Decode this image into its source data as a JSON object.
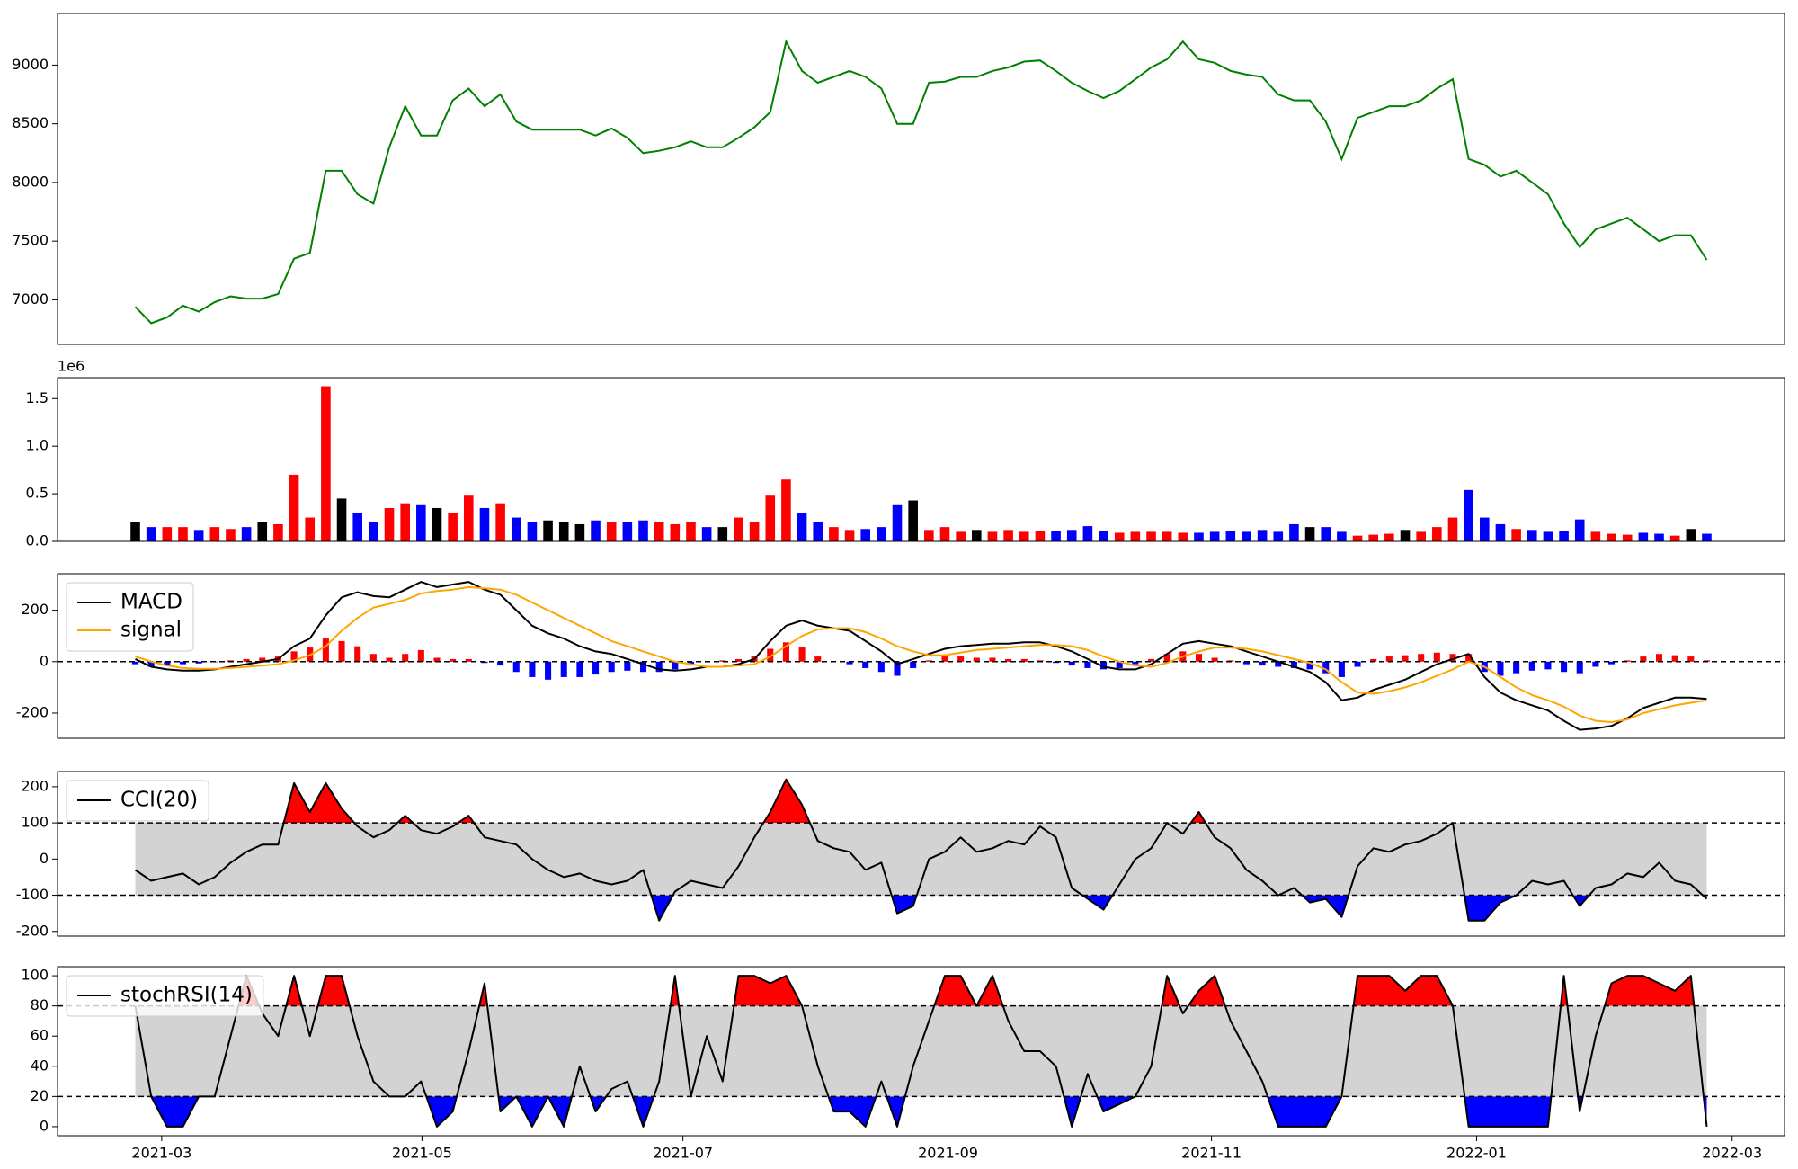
{
  "chart_data": [
    {
      "type": "line",
      "color": "#008000",
      "values": [
        6940,
        6800,
        6850,
        6950,
        6900,
        6980,
        7030,
        7010,
        7010,
        7050,
        7350,
        7400,
        8100,
        8100,
        7900,
        7820,
        8300,
        8650,
        8400,
        8400,
        8700,
        8800,
        8650,
        8750,
        8520,
        8450,
        8450,
        8450,
        8450,
        8400,
        8460,
        8380,
        8250,
        8270,
        8300,
        8350,
        8300,
        8300,
        8380,
        8470,
        8600,
        9200,
        8950,
        8850,
        8900,
        8950,
        8900,
        8800,
        8500,
        8500,
        8850,
        8860,
        8900,
        8900,
        8950,
        8980,
        9030,
        9040,
        8950,
        8850,
        8780,
        8720,
        8780,
        8880,
        8980,
        9050,
        9200,
        9050,
        9020,
        8950,
        8920,
        8900,
        8750,
        8700,
        8700,
        8520,
        8200,
        8550,
        8600,
        8650,
        8650,
        8700,
        8800,
        8880,
        8200,
        8150,
        8050,
        8100,
        8000,
        7900,
        7650,
        7450,
        7600,
        7650,
        7700,
        7600,
        7500,
        7550,
        7550,
        7340
      ],
      "xlim": [
        -4.9,
        103.9
      ],
      "ylim": [
        6620,
        9440
      ],
      "yticks": [
        7000,
        7500,
        8000,
        8500,
        9000
      ]
    },
    {
      "type": "bar",
      "up_color": "red",
      "down_color": "blue",
      "flat_color": "black",
      "offset_label": "1e6",
      "values": [
        200000,
        150000,
        150000,
        150000,
        120000,
        150000,
        130000,
        150000,
        200000,
        180000,
        700000,
        250000,
        1630000,
        450000,
        300000,
        200000,
        350000,
        400000,
        380000,
        350000,
        300000,
        480000,
        350000,
        400000,
        250000,
        200000,
        220000,
        200000,
        180000,
        220000,
        200000,
        200000,
        220000,
        200000,
        180000,
        200000,
        150000,
        150000,
        250000,
        200000,
        480000,
        650000,
        300000,
        200000,
        150000,
        120000,
        130000,
        150000,
        380000,
        430000,
        120000,
        150000,
        100000,
        120000,
        100000,
        120000,
        100000,
        110000,
        110000,
        120000,
        160000,
        110000,
        90000,
        100000,
        100000,
        100000,
        90000,
        90000,
        100000,
        110000,
        100000,
        120000,
        100000,
        180000,
        150000,
        150000,
        100000,
        60000,
        70000,
        80000,
        120000,
        100000,
        150000,
        250000,
        540000,
        250000,
        180000,
        130000,
        120000,
        100000,
        110000,
        230000,
        100000,
        80000,
        70000,
        90000,
        80000,
        60000,
        130000,
        80000
      ],
      "xlim": [
        -4.9,
        103.9
      ],
      "ylim": [
        0,
        1720000
      ],
      "yticks": [
        {
          "value": 0,
          "label": "0.0"
        },
        {
          "value": 500000,
          "label": "0.5"
        },
        {
          "value": 1000000,
          "label": "1.0"
        },
        {
          "value": 1500000,
          "label": "1.5"
        }
      ]
    },
    {
      "type": "macd",
      "legend": "upper left",
      "series": [
        {
          "name": "MACD",
          "color": "black",
          "values": [
            10,
            -20,
            -30,
            -35,
            -35,
            -30,
            -20,
            -10,
            0,
            10,
            60,
            90,
            180,
            250,
            270,
            255,
            250,
            280,
            310,
            290,
            300,
            310,
            280,
            260,
            200,
            140,
            110,
            90,
            60,
            40,
            30,
            10,
            -10,
            -30,
            -35,
            -30,
            -20,
            -20,
            -10,
            10,
            80,
            140,
            160,
            140,
            130,
            120,
            80,
            40,
            -10,
            10,
            30,
            50,
            60,
            65,
            70,
            70,
            75,
            75,
            60,
            40,
            10,
            -20,
            -30,
            -30,
            -10,
            30,
            70,
            80,
            70,
            60,
            40,
            20,
            0,
            -20,
            -40,
            -80,
            -150,
            -140,
            -110,
            -90,
            -70,
            -40,
            -10,
            10,
            30,
            -60,
            -120,
            -150,
            -170,
            -190,
            -230,
            -265,
            -260,
            -250,
            -220,
            -180,
            -160,
            -140,
            -140,
            -145
          ]
        },
        {
          "name": "signal",
          "color": "orange",
          "values": [
            20,
            0,
            -15,
            -25,
            -28,
            -28,
            -25,
            -20,
            -15,
            -10,
            5,
            25,
            60,
            120,
            170,
            210,
            225,
            240,
            265,
            275,
            280,
            290,
            285,
            280,
            260,
            230,
            200,
            170,
            140,
            110,
            80,
            60,
            40,
            20,
            0,
            -10,
            -20,
            -20,
            -15,
            -10,
            20,
            60,
            100,
            125,
            130,
            130,
            115,
            90,
            60,
            40,
            25,
            25,
            35,
            45,
            50,
            55,
            60,
            65,
            65,
            60,
            45,
            20,
            0,
            -15,
            -20,
            -5,
            20,
            40,
            55,
            55,
            50,
            40,
            25,
            10,
            -5,
            -30,
            -80,
            -120,
            -125,
            -115,
            -100,
            -80,
            -55,
            -30,
            0,
            -20,
            -60,
            -100,
            -130,
            -150,
            -175,
            -210,
            -230,
            -235,
            -225,
            -200,
            -185,
            -170,
            -160,
            -150
          ]
        }
      ],
      "histogram": {
        "up_color": "red",
        "down_color": "blue",
        "values": [
          -10,
          -20,
          -15,
          -10,
          -7,
          -2,
          5,
          10,
          15,
          20,
          40,
          55,
          90,
          80,
          60,
          30,
          15,
          30,
          45,
          15,
          10,
          10,
          -5,
          -15,
          -40,
          -60,
          -70,
          -60,
          -60,
          -50,
          -40,
          -35,
          -40,
          -40,
          -30,
          -15,
          0,
          5,
          10,
          20,
          50,
          75,
          55,
          20,
          0,
          -10,
          -25,
          -40,
          -55,
          -25,
          5,
          20,
          20,
          15,
          15,
          10,
          10,
          5,
          -5,
          -15,
          -25,
          -30,
          -25,
          -10,
          10,
          30,
          40,
          30,
          15,
          5,
          -10,
          -15,
          -20,
          -25,
          -30,
          -45,
          -60,
          -20,
          10,
          20,
          25,
          30,
          35,
          30,
          30,
          -40,
          -55,
          -45,
          -35,
          -30,
          -40,
          -45,
          -20,
          -10,
          5,
          20,
          30,
          25,
          20,
          5
        ]
      },
      "hlines": [
        0
      ],
      "xlim": [
        -4.9,
        103.9
      ],
      "ylim": [
        -298,
        342
      ],
      "yticks": [
        -200,
        0,
        200
      ]
    },
    {
      "type": "band",
      "legend": "upper left",
      "thresholds": [
        100,
        -100
      ],
      "above_color": "red",
      "below_color": "blue",
      "band_color": "lightgray",
      "series": [
        {
          "name": "CCI(20)",
          "color": "black",
          "values": [
            -30,
            -60,
            -50,
            -40,
            -70,
            -50,
            -10,
            20,
            40,
            40,
            210,
            130,
            210,
            140,
            90,
            60,
            80,
            120,
            80,
            70,
            90,
            120,
            60,
            50,
            40,
            0,
            -30,
            -50,
            -40,
            -60,
            -70,
            -60,
            -30,
            -170,
            -90,
            -60,
            -70,
            -80,
            -20,
            60,
            130,
            220,
            150,
            50,
            30,
            20,
            -30,
            -10,
            -150,
            -130,
            0,
            20,
            60,
            20,
            30,
            50,
            40,
            90,
            60,
            -80,
            -110,
            -140,
            -70,
            0,
            30,
            100,
            70,
            130,
            60,
            30,
            -30,
            -60,
            -100,
            -80,
            -120,
            -110,
            -160,
            -20,
            30,
            20,
            40,
            50,
            70,
            100,
            -170,
            -170,
            -120,
            -100,
            -60,
            -70,
            -60,
            -130,
            -80,
            -70,
            -40,
            -50,
            -10,
            -60,
            -70,
            -110
          ]
        }
      ],
      "xlim": [
        -4.9,
        103.9
      ],
      "ylim": [
        -213,
        242
      ],
      "yticks": [
        -200,
        -100,
        0,
        100,
        200
      ]
    },
    {
      "type": "band",
      "legend": "upper left",
      "thresholds": [
        80,
        20
      ],
      "above_color": "red",
      "below_color": "blue",
      "band_color": "lightgray",
      "series": [
        {
          "name": "stochRSI(14)",
          "color": "black",
          "values": [
            80,
            20,
            0,
            0,
            20,
            20,
            60,
            100,
            75,
            60,
            100,
            60,
            100,
            100,
            60,
            30,
            20,
            20,
            30,
            0,
            10,
            50,
            95,
            10,
            20,
            0,
            20,
            0,
            40,
            10,
            25,
            30,
            0,
            30,
            100,
            20,
            60,
            30,
            100,
            100,
            95,
            100,
            80,
            40,
            10,
            10,
            0,
            30,
            0,
            40,
            70,
            100,
            100,
            80,
            100,
            70,
            50,
            50,
            40,
            0,
            35,
            10,
            15,
            20,
            40,
            100,
            75,
            90,
            100,
            70,
            50,
            30,
            0,
            0,
            0,
            0,
            20,
            100,
            100,
            100,
            90,
            100,
            100,
            80,
            0,
            0,
            0,
            0,
            0,
            0,
            100,
            10,
            60,
            95,
            100,
            100,
            95,
            90,
            100,
            0
          ]
        }
      ],
      "xlim": [
        -4.9,
        103.9
      ],
      "ylim": [
        -6,
        106
      ],
      "yticks": [
        0,
        20,
        40,
        60,
        80,
        100
      ],
      "xticks": [
        {
          "value": 1.66,
          "label": "2021-03"
        },
        {
          "value": 18.06,
          "label": "2021-05"
        },
        {
          "value": 34.5,
          "label": "2021-07"
        },
        {
          "value": 51.2,
          "label": "2021-09"
        },
        {
          "value": 67.8,
          "label": "2021-11"
        },
        {
          "value": 84.5,
          "label": "2022-01"
        },
        {
          "value": 100.6,
          "label": "2022-03"
        }
      ]
    }
  ]
}
